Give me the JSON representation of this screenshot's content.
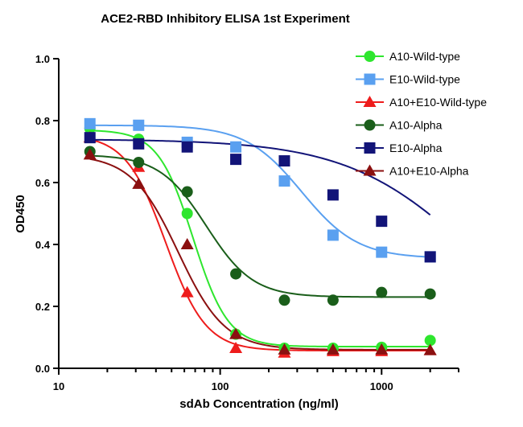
{
  "chart_data": {
    "type": "scatter",
    "title": "ACE2-RBD Inhibitory ELISA 1st Experiment",
    "xlabel": "sdAb Concentration (ng/ml)",
    "ylabel": "OD450",
    "x_scale": "log",
    "xlim": [
      10,
      3000
    ],
    "ylim": [
      0,
      1.0
    ],
    "x_tick_labels": [
      "10",
      "100",
      "1000"
    ],
    "y_tick_labels": [
      "0.0",
      "0.2",
      "0.4",
      "0.6",
      "0.8",
      "1.0"
    ],
    "legend_position": "top-right",
    "x": [
      15.6,
      31.25,
      62.5,
      125,
      250,
      500,
      1000,
      2000
    ],
    "series": [
      {
        "name": "A10-Wild-type",
        "marker": "circle",
        "color": "#2ee62e",
        "values": [
          0.775,
          0.74,
          0.5,
          0.11,
          0.065,
          0.065,
          0.068,
          0.09
        ],
        "fit": {
          "top": 0.77,
          "bottom": 0.07,
          "ec50": 68,
          "hill": 4.0
        }
      },
      {
        "name": "E10-Wild-type",
        "marker": "square",
        "color": "#5aa0f0",
        "values": [
          0.79,
          0.785,
          0.73,
          0.715,
          0.605,
          0.43,
          0.375,
          0.36
        ],
        "fit": {
          "top": 0.785,
          "bottom": 0.355,
          "ec50": 320,
          "hill": 2.5
        }
      },
      {
        "name": "A10+E10-Wild-type",
        "marker": "triangle",
        "color": "#ee1c1c",
        "values": [
          0.745,
          0.65,
          0.245,
          0.065,
          0.05,
          0.055,
          0.055,
          0.058
        ],
        "fit": {
          "top": 0.755,
          "bottom": 0.057,
          "ec50": 46,
          "hill": 3.5
        }
      },
      {
        "name": "A10-Alpha",
        "marker": "circle",
        "color": "#1a5e1a",
        "values": [
          0.7,
          0.665,
          0.57,
          0.305,
          0.22,
          0.22,
          0.245,
          0.24
        ],
        "fit": {
          "top": 0.69,
          "bottom": 0.23,
          "ec50": 82,
          "hill": 3.0
        }
      },
      {
        "name": "E10-Alpha",
        "marker": "square",
        "color": "#121478",
        "values": [
          0.745,
          0.725,
          0.715,
          0.675,
          0.67,
          0.56,
          0.475,
          0.36
        ],
        "fit": {
          "top": 0.74,
          "bottom": 0.0,
          "ec50": 3800,
          "hill": 1.1
        }
      },
      {
        "name": "A10+E10-Alpha",
        "marker": "triangle",
        "color": "#8b1010",
        "values": [
          0.69,
          0.595,
          0.4,
          0.11,
          0.06,
          0.06,
          0.06,
          0.058
        ],
        "fit": {
          "top": 0.69,
          "bottom": 0.06,
          "ec50": 55,
          "hill": 3.0
        }
      }
    ]
  }
}
